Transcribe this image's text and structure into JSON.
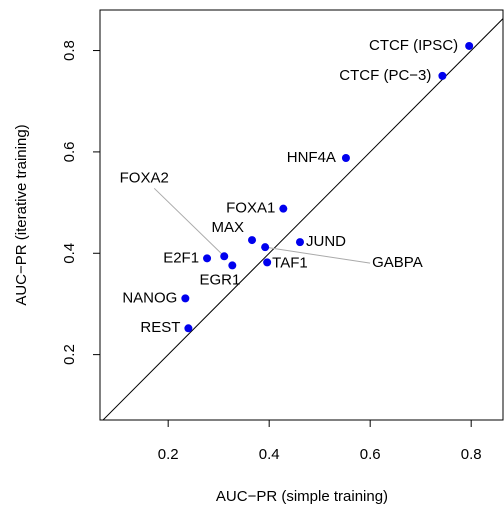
{
  "chart_data": {
    "type": "scatter",
    "xlabel": "AUC−PR (simple training)",
    "ylabel": "AUC−PR (iterative training)",
    "labels": [
      "CTCF (IPSC)",
      "CTCF (PC−3)",
      "HNF4A",
      "FOXA1",
      "JUND",
      "MAX",
      "GABPA",
      "FOXA2",
      "E2F1",
      "EGR1",
      "TAF1",
      "NANOG",
      "REST"
    ],
    "x": [
      0.796,
      0.743,
      0.552,
      0.428,
      0.461,
      0.366,
      0.392,
      0.311,
      0.277,
      0.327,
      0.396,
      0.234,
      0.24
    ],
    "y": [
      0.809,
      0.75,
      0.588,
      0.488,
      0.422,
      0.426,
      0.412,
      0.394,
      0.39,
      0.376,
      0.382,
      0.311,
      0.252
    ],
    "color": "#0000ee",
    "xlim": [
      0.065,
      0.863
    ],
    "ylim": [
      0.071,
      0.88
    ],
    "xticks": [
      0.2,
      0.4,
      0.6,
      0.8
    ],
    "yticks": [
      0.2,
      0.4,
      0.6,
      0.8
    ],
    "diagonal": true
  }
}
